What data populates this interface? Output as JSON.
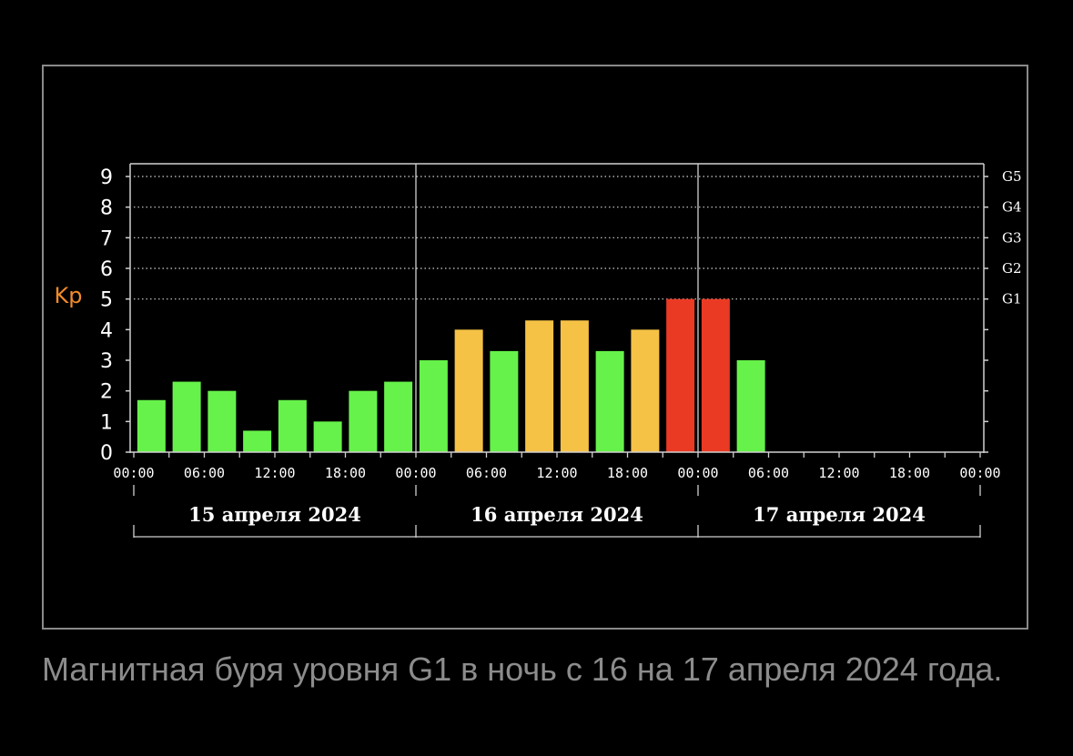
{
  "caption": "Магнитная буря уровня G1 в ночь с 16 на 17 апреля 2024 года.",
  "chart_data": {
    "type": "bar",
    "title": "",
    "xlabel": "",
    "ylabel": "Kp",
    "ylim": [
      0,
      9
    ],
    "yticks": [
      "0",
      "1",
      "2",
      "3",
      "4",
      "5",
      "6",
      "7",
      "8",
      "9"
    ],
    "interval_hours": 3,
    "xtick_labels": [
      "00:00",
      "06:00",
      "12:00",
      "18:00",
      "00:00",
      "06:00",
      "12:00",
      "18:00",
      "00:00",
      "06:00",
      "12:00",
      "18:00",
      "00:00"
    ],
    "days": [
      "15 апреля 2024",
      "16 апреля 2024",
      "17 апреля 2024"
    ],
    "g_levels": [
      {
        "label": "G1",
        "kp": 5
      },
      {
        "label": "G2",
        "kp": 6
      },
      {
        "label": "G3",
        "kp": 7
      },
      {
        "label": "G4",
        "kp": 8
      },
      {
        "label": "G5",
        "kp": 9
      }
    ],
    "values": [
      1.7,
      2.3,
      2.0,
      0.7,
      1.7,
      1.0,
      2.0,
      2.3,
      3.0,
      4.0,
      3.3,
      4.3,
      4.3,
      3.3,
      4.0,
      5.0,
      5.0,
      3.0
    ],
    "colors": {
      "quiet": "#66f24a",
      "unsettled": "#f6c245",
      "storm": "#ea3a24",
      "ylabel": "#f08a2c",
      "grid": "#d0d0d0",
      "axis": "#d0d0d0"
    },
    "grid": true
  }
}
